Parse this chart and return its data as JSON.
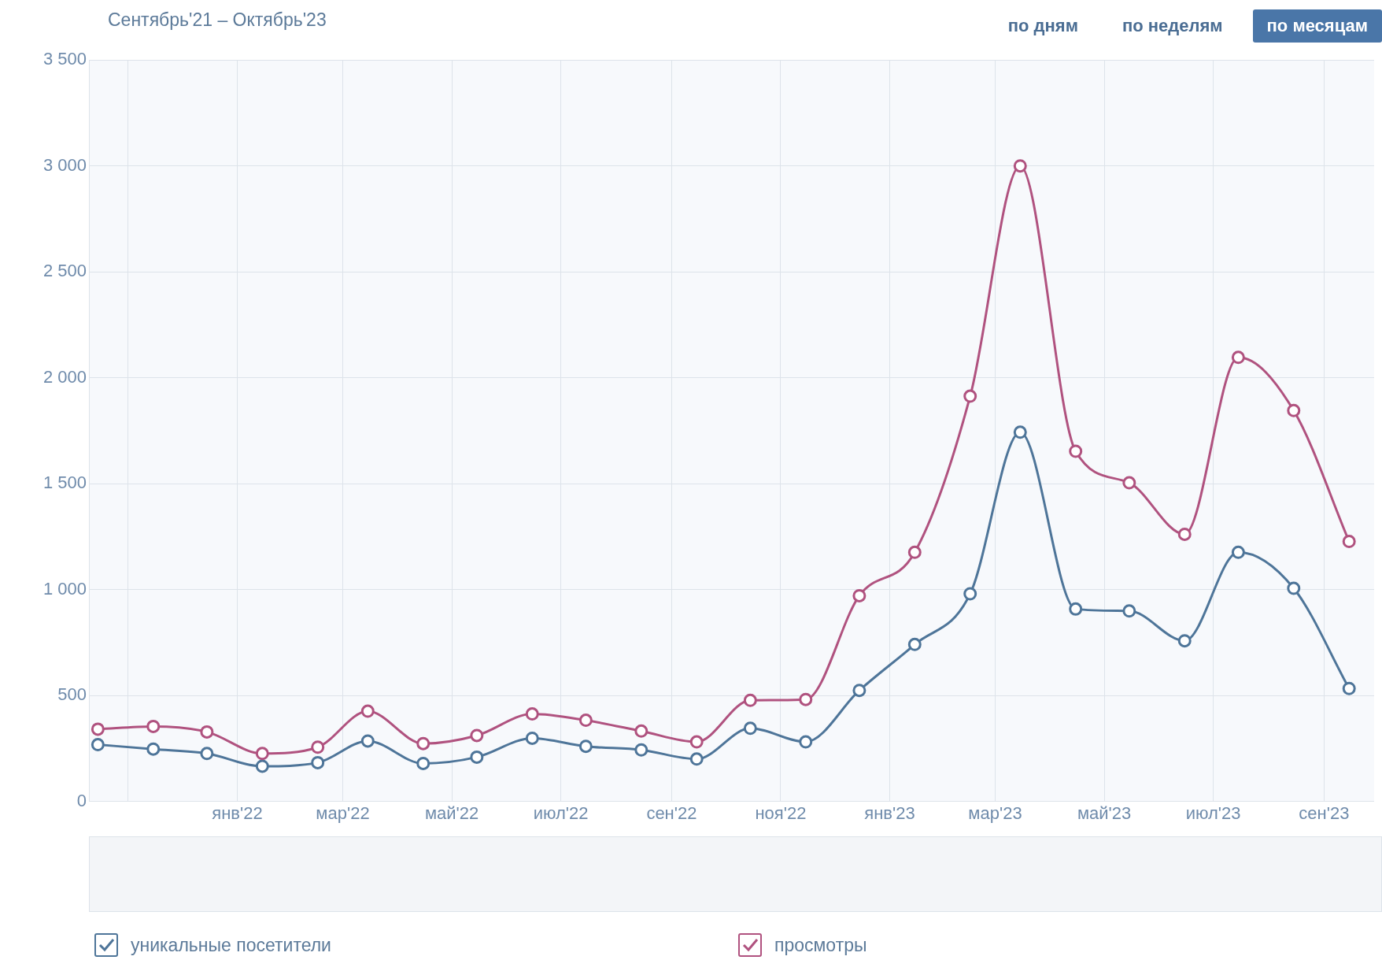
{
  "chart_data": {
    "type": "line",
    "title": "Сентябрь'21 – Октябрь'23",
    "annotations": [
      "по дням",
      "по неделям",
      "по месяцам"
    ],
    "x": [
      "2021-10-15",
      "2021-11-15",
      "2021-12-15",
      "2022-01-15",
      "2022-02-15",
      "2022-03-15",
      "2022-04-15",
      "2022-05-15",
      "2022-06-15",
      "2022-07-15",
      "2022-08-15",
      "2022-09-15",
      "2022-10-15",
      "2022-11-15",
      "2022-12-15",
      "2023-01-15",
      "2023-02-15",
      "2023-03-15",
      "2023-04-15",
      "2023-05-15",
      "2023-06-15",
      "2023-07-15",
      "2023-08-15",
      "2023-09-15"
    ],
    "series": [
      {
        "name": "уникальные посетители",
        "color": "#4e7599",
        "values": [
          268,
          247,
          226,
          166,
          183,
          285,
          179,
          209,
          298,
          260,
          243,
          200,
          345,
          281,
          524,
          741,
          980,
          1743,
          908,
          899,
          758,
          1176,
          1006,
          533
        ]
      },
      {
        "name": "просмотры",
        "color": "#b0527f",
        "values": [
          341,
          354,
          328,
          226,
          256,
          426,
          273,
          311,
          413,
          383,
          332,
          281,
          477,
          481,
          971,
          1176,
          1913,
          3000,
          1653,
          1504,
          1261,
          2096,
          1845,
          1227
        ]
      }
    ],
    "xlim": [
      "2021-10-10",
      "2023-09-29"
    ],
    "xticks": [
      {
        "value": "2021-11-01",
        "label": null
      },
      {
        "value": "2022-01-01",
        "label": "янв'22"
      },
      {
        "value": "2022-03-01",
        "label": "мар'22"
      },
      {
        "value": "2022-05-01",
        "label": "май'22"
      },
      {
        "value": "2022-07-01",
        "label": "июл'22"
      },
      {
        "value": "2022-09-01",
        "label": "сен'22"
      },
      {
        "value": "2022-11-01",
        "label": "ноя'22"
      },
      {
        "value": "2023-01-01",
        "label": "янв'23"
      },
      {
        "value": "2023-03-01",
        "label": "мар'23"
      },
      {
        "value": "2023-05-01",
        "label": "май'23"
      },
      {
        "value": "2023-07-01",
        "label": "июл'23"
      },
      {
        "value": "2023-09-01",
        "label": "сен'23"
      }
    ],
    "ylim": [
      0,
      3500
    ],
    "yticks": [
      0,
      500,
      {
        "value": 1000,
        "label": "1 000"
      },
      {
        "value": 1500,
        "label": "1 500"
      },
      {
        "value": 2000,
        "label": "2 000"
      },
      {
        "value": 2500,
        "label": "2 500"
      },
      {
        "value": 3000,
        "label": "3 000"
      },
      {
        "value": 3500,
        "label": "3 500"
      }
    ],
    "grid": true,
    "legend": "bottom",
    "marker": "circle",
    "line_style": "solid"
  }
}
